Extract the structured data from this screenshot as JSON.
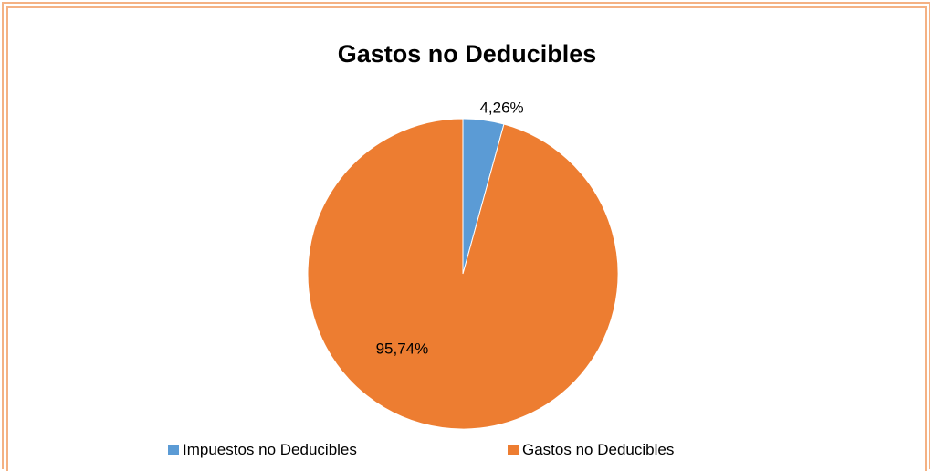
{
  "chart_data": {
    "type": "pie",
    "title": "Gastos no Deducibles",
    "slices": [
      {
        "label": "Impuestos no Deducibles",
        "value": 4.26,
        "display": "4,26%",
        "color": "#5b9bd5"
      },
      {
        "label": "Gastos no Deducibles",
        "value": 95.74,
        "display": "95,74%",
        "color": "#ed7d31"
      }
    ],
    "legend_position": "bottom",
    "start_angle": "top, clockwise"
  }
}
